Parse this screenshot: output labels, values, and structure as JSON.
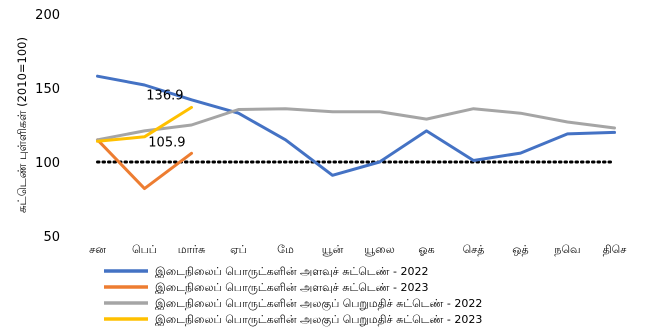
{
  "chart_data": {
    "type": "line",
    "title": "",
    "ylabel": "சுட்டெண் புள்ளிகள் (2010=100)",
    "xlabel": "",
    "ylim": [
      50,
      200
    ],
    "yticks": [
      50,
      100,
      150,
      200
    ],
    "categories": [
      "சன",
      "பெப்",
      "மார்சு",
      "ஏப்",
      "மே",
      "யூன்",
      "யூலை",
      "ஓக",
      "செத்",
      "ஒத்",
      "நவெ",
      "திசெ"
    ],
    "series": [
      {
        "name": "இடைநிலைப் பொருட்களின் அளவுச் சுட்டெண் - 2022",
        "color": "#4472C4",
        "values": [
          158,
          152,
          142,
          133,
          115,
          91,
          100,
          121,
          101,
          106,
          119,
          120
        ]
      },
      {
        "name": "இடைநிலைப் பொருட்களின் அளவுச் சுட்டெண் - 2023",
        "color": "#ED7D31",
        "values": [
          115,
          82,
          105.9,
          null,
          null,
          null,
          null,
          null,
          null,
          null,
          null,
          null
        ]
      },
      {
        "name": "இடைநிலைப் பொருட்களின் அலகுப் பெறுமதிச் சுட்டெண் - 2022",
        "color": "#A5A5A5",
        "values": [
          115,
          121,
          125,
          135.5,
          136,
          134,
          134,
          129,
          136,
          133,
          127,
          123
        ]
      },
      {
        "name": "இடைநிலைப் பொருட்களின் அலகுப் பெறுமதிச் சுட்டெண் - 2023",
        "color": "#FFC000",
        "values": [
          114,
          117,
          136.9,
          null,
          null,
          null,
          null,
          null,
          null,
          null,
          null,
          null
        ]
      }
    ],
    "data_labels": [
      {
        "series": 3,
        "index": 2,
        "text": "136.9"
      },
      {
        "series": 1,
        "index": 2,
        "text": "105.9"
      }
    ],
    "reference_line": {
      "value": 100,
      "style": "dotted",
      "color": "#000000"
    },
    "grid": false,
    "legend_position": "bottom"
  }
}
